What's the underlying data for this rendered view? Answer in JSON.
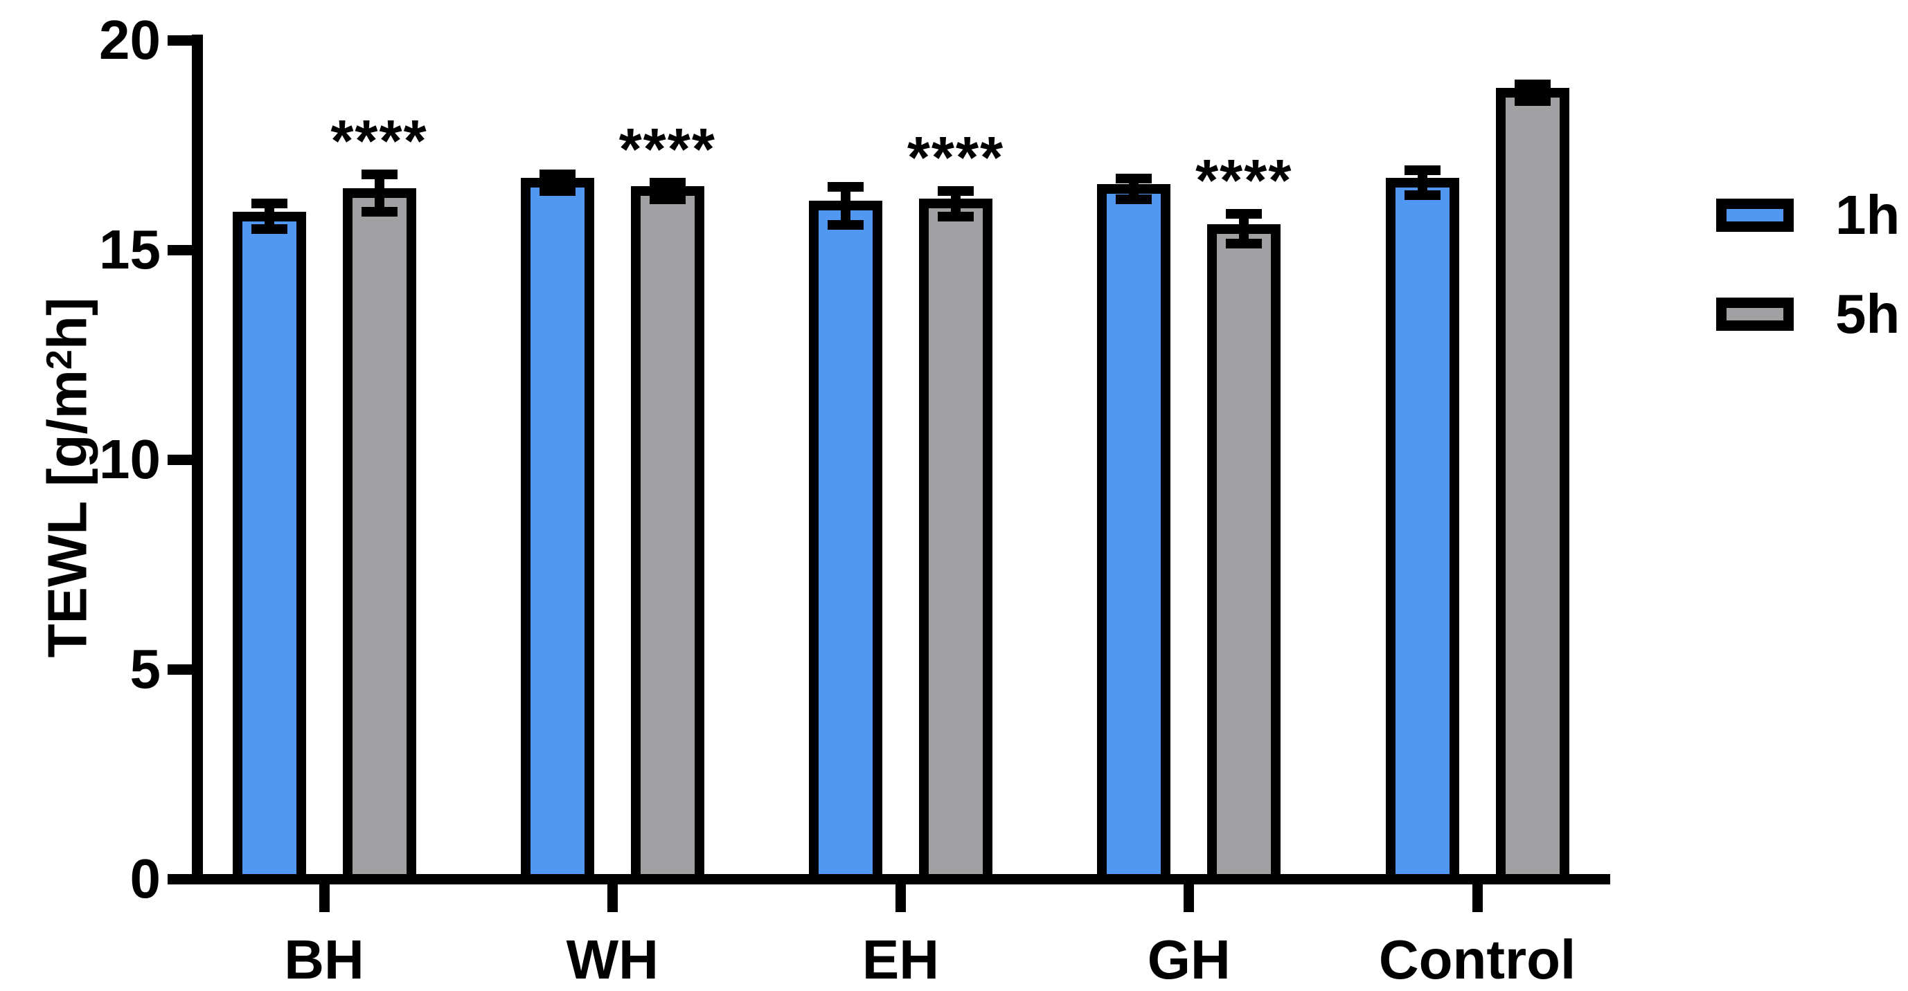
{
  "figure": {
    "background": "#ffffff",
    "text_color": "#000000"
  },
  "y_axis": {
    "title_parts": {
      "pre": "TEWL [g/m",
      "sup": "2",
      "post": "h]"
    },
    "tick_labels": [
      "0",
      "5",
      "10",
      "15",
      "20"
    ]
  },
  "chart_data": {
    "type": "bar",
    "title": "",
    "xlabel": "",
    "ylabel": "TEWL [g/m²h]",
    "categories": [
      "BH",
      "WH",
      "EH",
      "GH",
      "Control"
    ],
    "series": [
      {
        "name": "1h",
        "color": "#5098F2",
        "values": [
          15.8,
          16.6,
          16.05,
          16.45,
          16.6
        ],
        "sem": [
          0.3,
          0.2,
          0.45,
          0.25,
          0.3
        ]
      },
      {
        "name": "5h",
        "color": "#A1A1A4",
        "values": [
          16.35,
          16.4,
          16.1,
          15.5,
          18.75
        ],
        "sem": [
          0.45,
          0.2,
          0.3,
          0.35,
          0.2
        ]
      }
    ],
    "error_bars": "two-sided whiskers with caps (mean ± SEM)",
    "significance": {
      "on_series": "5h",
      "labels": [
        "****",
        "****",
        "****",
        "****",
        ""
      ]
    },
    "ylim": [
      0,
      20
    ],
    "yticks": [
      0,
      5,
      10,
      15,
      20
    ],
    "grid": false,
    "legend_position": "right-outside",
    "bar_outline_color": "#000000"
  },
  "legend": {
    "items": [
      {
        "label": "1h",
        "color": "#5098F2"
      },
      {
        "label": "5h",
        "color": "#A1A1A4"
      }
    ]
  }
}
